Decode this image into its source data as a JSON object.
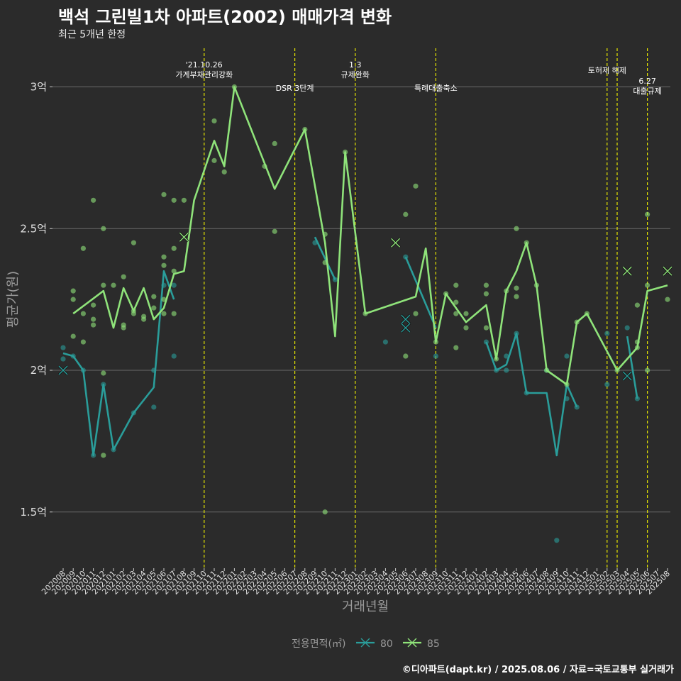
{
  "header": {
    "title": "백석 그린빌1차 아파트(2002) 매매가격 변화",
    "subtitle": "최근 5개년 한정"
  },
  "footer": {
    "caption": "©디아파트(dapt.kr) / 2025.08.06 / 자료=국토교통부 실거래가"
  },
  "legend": {
    "title": "전용면적(㎡)",
    "items": [
      {
        "label": "80",
        "color": "#2a9d9a"
      },
      {
        "label": "85",
        "color": "#8fe37a"
      }
    ]
  },
  "chart_data": {
    "type": "line",
    "title": "백석 그린빌1차 아파트(2002) 매매가격 변화",
    "subtitle": "최근 5개년 한정",
    "xlabel": "거래년월",
    "ylabel": "평균가(원)",
    "ylim": [
      1.32,
      3.15
    ],
    "yticks": [
      {
        "value": 1.5,
        "label": "1.5억"
      },
      {
        "value": 2,
        "label": "2억"
      },
      {
        "value": 2.5,
        "label": "2.5억"
      },
      {
        "value": 3,
        "label": "3억"
      }
    ],
    "x_categories": [
      "202008",
      "202009",
      "202010",
      "202011",
      "202012",
      "202101",
      "202102",
      "202103",
      "202104",
      "202105",
      "202106",
      "202107",
      "202108",
      "202109",
      "202110",
      "202111",
      "202112",
      "202201",
      "202202",
      "202203",
      "202204",
      "202205",
      "202206",
      "202207",
      "202208",
      "202209",
      "202210",
      "202211",
      "202212",
      "202301",
      "202302",
      "202303",
      "202304",
      "202305",
      "202306",
      "202307",
      "202308",
      "202309",
      "202310",
      "202311",
      "202312",
      "202401",
      "202402",
      "202403",
      "202404",
      "202405",
      "202406",
      "202407",
      "202408",
      "202409",
      "202410",
      "202411",
      "202412",
      "202501",
      "202502",
      "202503",
      "202504",
      "202505",
      "202506",
      "202507",
      "202508"
    ],
    "grid": true,
    "legend_position": "bottom",
    "series": [
      {
        "name": "80",
        "color": "#2a9d9a",
        "line": [
          {
            "x": "202008",
            "y": 2.06
          },
          {
            "x": "202009",
            "y": 2.05
          },
          {
            "x": "202010",
            "y": 2.0
          },
          {
            "x": "202011",
            "y": 1.7
          },
          {
            "x": "202012",
            "y": 1.95
          },
          {
            "x": "202101",
            "y": 1.72
          },
          {
            "x": "202103",
            "y": 1.85
          },
          {
            "x": "202105",
            "y": 1.94
          },
          {
            "x": "202106",
            "y": 2.35
          },
          {
            "x": "202107",
            "y": 2.25
          }
        ],
        "line2": [
          {
            "x": "202209",
            "y": 2.47
          },
          {
            "x": "202211",
            "y": 2.32
          }
        ],
        "line3": [
          {
            "x": "202306",
            "y": 2.4
          },
          {
            "x": "202309",
            "y": 2.15
          }
        ],
        "line4": [
          {
            "x": "202402",
            "y": 2.1
          },
          {
            "x": "202403",
            "y": 2.0
          },
          {
            "x": "202404",
            "y": 2.02
          },
          {
            "x": "202405",
            "y": 2.13
          },
          {
            "x": "202406",
            "y": 1.92
          },
          {
            "x": "202407",
            "y": 1.92
          },
          {
            "x": "202408",
            "y": 1.92
          },
          {
            "x": "202409",
            "y": 1.7
          },
          {
            "x": "202410",
            "y": 1.95
          },
          {
            "x": "202411",
            "y": 1.87
          }
        ],
        "line5": [
          {
            "x": "202504",
            "y": 2.12
          },
          {
            "x": "202505",
            "y": 1.9
          }
        ],
        "points": [
          {
            "x": "202008",
            "y": 2.08
          },
          {
            "x": "202008",
            "y": 2.04
          },
          {
            "x": "202009",
            "y": 2.05
          },
          {
            "x": "202010",
            "y": 2.0
          },
          {
            "x": "202011",
            "y": 1.7
          },
          {
            "x": "202012",
            "y": 1.95
          },
          {
            "x": "202101",
            "y": 1.72
          },
          {
            "x": "202103",
            "y": 1.85
          },
          {
            "x": "202105",
            "y": 1.87
          },
          {
            "x": "202105",
            "y": 2.0
          },
          {
            "x": "202106",
            "y": 2.3
          },
          {
            "x": "202107",
            "y": 2.05
          },
          {
            "x": "202107",
            "y": 2.3
          },
          {
            "x": "202209",
            "y": 2.45
          },
          {
            "x": "202211",
            "y": 2.32
          },
          {
            "x": "202304",
            "y": 2.1
          },
          {
            "x": "202306",
            "y": 2.4
          },
          {
            "x": "202309",
            "y": 2.05
          },
          {
            "x": "202402",
            "y": 2.1
          },
          {
            "x": "202403",
            "y": 2.0
          },
          {
            "x": "202404",
            "y": 2.0
          },
          {
            "x": "202404",
            "y": 2.05
          },
          {
            "x": "202405",
            "y": 2.13
          },
          {
            "x": "202406",
            "y": 1.92
          },
          {
            "x": "202408",
            "y": 2.0
          },
          {
            "x": "202409",
            "y": 1.4
          },
          {
            "x": "202410",
            "y": 1.9
          },
          {
            "x": "202410",
            "y": 2.05
          },
          {
            "x": "202411",
            "y": 1.87
          },
          {
            "x": "202502",
            "y": 1.95
          },
          {
            "x": "202502",
            "y": 2.13
          },
          {
            "x": "202504",
            "y": 2.15
          },
          {
            "x": "202505",
            "y": 1.9
          }
        ],
        "crosses": [
          {
            "x": "202008",
            "y": 2.0
          },
          {
            "x": "202306",
            "y": 2.18
          },
          {
            "x": "202306",
            "y": 2.15
          },
          {
            "x": "202504",
            "y": 1.98
          }
        ]
      },
      {
        "name": "85",
        "color": "#8fe37a",
        "line": [
          {
            "x": "202009",
            "y": 2.2
          },
          {
            "x": "202012",
            "y": 2.28
          },
          {
            "x": "202101",
            "y": 2.15
          },
          {
            "x": "202102",
            "y": 2.29
          },
          {
            "x": "202103",
            "y": 2.21
          },
          {
            "x": "202104",
            "y": 2.29
          },
          {
            "x": "202105",
            "y": 2.18
          },
          {
            "x": "202106",
            "y": 2.22
          },
          {
            "x": "202107",
            "y": 2.34
          },
          {
            "x": "202108",
            "y": 2.35
          },
          {
            "x": "202109",
            "y": 2.6
          },
          {
            "x": "202111",
            "y": 2.81
          },
          {
            "x": "202112",
            "y": 2.72
          },
          {
            "x": "202201",
            "y": 3.0
          },
          {
            "x": "202205",
            "y": 2.64
          },
          {
            "x": "202208",
            "y": 2.85
          },
          {
            "x": "202210",
            "y": 2.45
          },
          {
            "x": "202211",
            "y": 2.12
          },
          {
            "x": "202212",
            "y": 2.77
          },
          {
            "x": "202302",
            "y": 2.2
          },
          {
            "x": "202307",
            "y": 2.26
          },
          {
            "x": "202308",
            "y": 2.43
          },
          {
            "x": "202309",
            "y": 2.1
          },
          {
            "x": "202310",
            "y": 2.27
          },
          {
            "x": "202312",
            "y": 2.17
          },
          {
            "x": "202402",
            "y": 2.23
          },
          {
            "x": "202403",
            "y": 2.04
          },
          {
            "x": "202404",
            "y": 2.28
          },
          {
            "x": "202405",
            "y": 2.35
          },
          {
            "x": "202406",
            "y": 2.45
          },
          {
            "x": "202407",
            "y": 2.3
          },
          {
            "x": "202408",
            "y": 2.0
          },
          {
            "x": "202410",
            "y": 1.95
          },
          {
            "x": "202411",
            "y": 2.17
          },
          {
            "x": "202412",
            "y": 2.2
          },
          {
            "x": "202503",
            "y": 2.0
          },
          {
            "x": "202505",
            "y": 2.08
          },
          {
            "x": "202506",
            "y": 2.28
          },
          {
            "x": "202508",
            "y": 2.3
          }
        ],
        "points": [
          {
            "x": "202009",
            "y": 2.28
          },
          {
            "x": "202009",
            "y": 2.25
          },
          {
            "x": "202009",
            "y": 2.12
          },
          {
            "x": "202010",
            "y": 2.2
          },
          {
            "x": "202010",
            "y": 2.43
          },
          {
            "x": "202010",
            "y": 2.1
          },
          {
            "x": "202011",
            "y": 2.6
          },
          {
            "x": "202011",
            "y": 2.23
          },
          {
            "x": "202011",
            "y": 2.18
          },
          {
            "x": "202011",
            "y": 2.16
          },
          {
            "x": "202012",
            "y": 2.5
          },
          {
            "x": "202012",
            "y": 2.3
          },
          {
            "x": "202012",
            "y": 1.99
          },
          {
            "x": "202012",
            "y": 1.7
          },
          {
            "x": "202101",
            "y": 2.3
          },
          {
            "x": "202102",
            "y": 2.33
          },
          {
            "x": "202102",
            "y": 2.16
          },
          {
            "x": "202102",
            "y": 2.15
          },
          {
            "x": "202103",
            "y": 2.45
          },
          {
            "x": "202103",
            "y": 2.21
          },
          {
            "x": "202103",
            "y": 2.2
          },
          {
            "x": "202104",
            "y": 2.19
          },
          {
            "x": "202104",
            "y": 2.18
          },
          {
            "x": "202105",
            "y": 2.26
          },
          {
            "x": "202105",
            "y": 2.22
          },
          {
            "x": "202106",
            "y": 2.62
          },
          {
            "x": "202106",
            "y": 2.4
          },
          {
            "x": "202106",
            "y": 2.37
          },
          {
            "x": "202106",
            "y": 2.25
          },
          {
            "x": "202106",
            "y": 2.2
          },
          {
            "x": "202107",
            "y": 2.6
          },
          {
            "x": "202107",
            "y": 2.43
          },
          {
            "x": "202107",
            "y": 2.35
          },
          {
            "x": "202107",
            "y": 2.2
          },
          {
            "x": "202108",
            "y": 2.6
          },
          {
            "x": "202111",
            "y": 2.88
          },
          {
            "x": "202111",
            "y": 2.74
          },
          {
            "x": "202112",
            "y": 2.7
          },
          {
            "x": "202201",
            "y": 3.0
          },
          {
            "x": "202204",
            "y": 2.72
          },
          {
            "x": "202205",
            "y": 2.8
          },
          {
            "x": "202205",
            "y": 2.49
          },
          {
            "x": "202208",
            "y": 2.85
          },
          {
            "x": "202210",
            "y": 2.48
          },
          {
            "x": "202210",
            "y": 2.38
          },
          {
            "x": "202210",
            "y": 1.5
          },
          {
            "x": "202212",
            "y": 2.77
          },
          {
            "x": "202302",
            "y": 2.2
          },
          {
            "x": "202306",
            "y": 2.55
          },
          {
            "x": "202306",
            "y": 2.05
          },
          {
            "x": "202307",
            "y": 2.65
          },
          {
            "x": "202307",
            "y": 2.2
          },
          {
            "x": "202309",
            "y": 2.1
          },
          {
            "x": "202310",
            "y": 2.27
          },
          {
            "x": "202311",
            "y": 2.3
          },
          {
            "x": "202311",
            "y": 2.24
          },
          {
            "x": "202311",
            "y": 2.2
          },
          {
            "x": "202311",
            "y": 2.08
          },
          {
            "x": "202312",
            "y": 2.2
          },
          {
            "x": "202312",
            "y": 2.15
          },
          {
            "x": "202402",
            "y": 2.3
          },
          {
            "x": "202402",
            "y": 2.27
          },
          {
            "x": "202402",
            "y": 2.15
          },
          {
            "x": "202403",
            "y": 2.04
          },
          {
            "x": "202404",
            "y": 2.28
          },
          {
            "x": "202405",
            "y": 2.5
          },
          {
            "x": "202405",
            "y": 2.29
          },
          {
            "x": "202405",
            "y": 2.26
          },
          {
            "x": "202406",
            "y": 2.45
          },
          {
            "x": "202407",
            "y": 2.3
          },
          {
            "x": "202408",
            "y": 2.0
          },
          {
            "x": "202410",
            "y": 1.95
          },
          {
            "x": "202411",
            "y": 2.17
          },
          {
            "x": "202412",
            "y": 2.2
          },
          {
            "x": "202503",
            "y": 2.0
          },
          {
            "x": "202505",
            "y": 2.23
          },
          {
            "x": "202505",
            "y": 2.1
          },
          {
            "x": "202505",
            "y": 2.08
          },
          {
            "x": "202506",
            "y": 2.55
          },
          {
            "x": "202506",
            "y": 2.3
          },
          {
            "x": "202506",
            "y": 2.0
          },
          {
            "x": "202508",
            "y": 2.25
          }
        ],
        "crosses": [
          {
            "x": "202108",
            "y": 2.47
          },
          {
            "x": "202305",
            "y": 2.45
          },
          {
            "x": "202504",
            "y": 2.35
          },
          {
            "x": "202508",
            "y": 2.35
          }
        ]
      }
    ],
    "annotations": [
      {
        "x": "202110",
        "label": "'21.10.26 가계부채관리강화",
        "lines": [
          "'21.10.26",
          "가계부채관리강화"
        ]
      },
      {
        "x": "202207",
        "label": "DSR 3단계",
        "lines": [
          "DSR 3단계"
        ]
      },
      {
        "x": "202301",
        "label": "1.3 규제완화",
        "lines": [
          "1.3",
          "규제완화"
        ]
      },
      {
        "x": "202309",
        "label": "특례대출축소",
        "lines": [
          "특례대출축소"
        ]
      },
      {
        "x": "202502",
        "label": "토허제 해제",
        "lines": [
          "토허제 해제"
        ]
      },
      {
        "x": "202503",
        "label": "",
        "lines": []
      },
      {
        "x": "202506",
        "label": "6.27 대출규제",
        "lines": [
          "6.27",
          "대출규제"
        ]
      }
    ]
  }
}
